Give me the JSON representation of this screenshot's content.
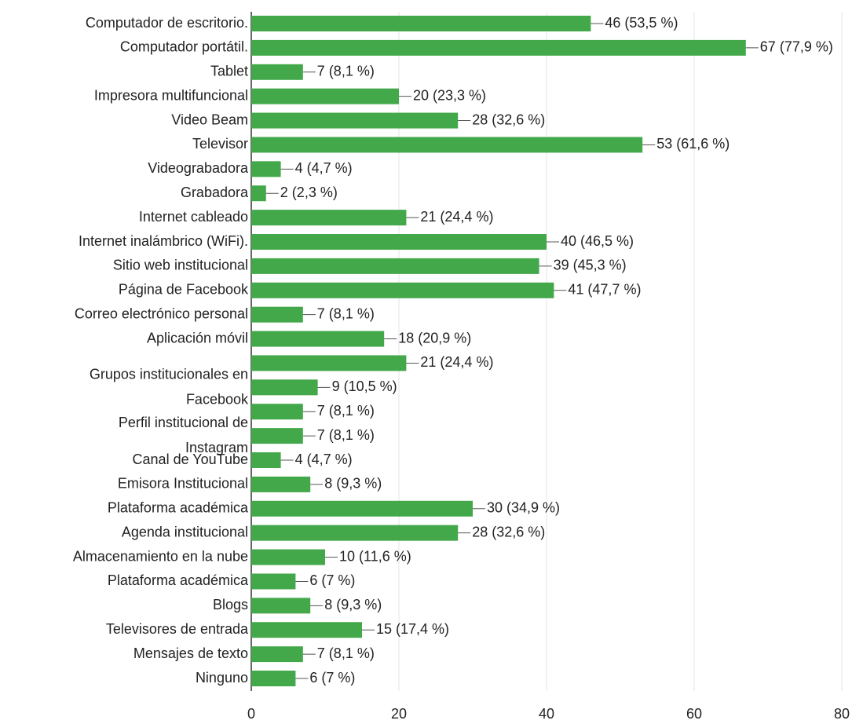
{
  "chart_data": {
    "type": "barh",
    "categories": [
      "Computador de escritorio.",
      "Computador portátil.",
      "Tablet",
      "Impresora multifuncional",
      "Video Beam",
      "Televisor",
      "Videograbadora",
      "Grabadora",
      "Internet cableado",
      "Internet inalámbrico (WiFi).",
      "Sitio web institucional",
      "Página de Facebook",
      "Correo electrónico personal",
      "Aplicación móvil",
      null,
      "Grupos institucionales en Facebook",
      null,
      "Perfil institucional de Instagram",
      "Canal de YouTube",
      "Emisora Institucional",
      "Plataforma académica",
      "Agenda institucional",
      "Almacenamiento en la nube",
      "Plataforma académica",
      "Blogs",
      "Televisores de entrada",
      "Mensajes de texto",
      "Ninguno"
    ],
    "values": [
      46,
      67,
      7,
      20,
      28,
      53,
      4,
      2,
      21,
      40,
      39,
      41,
      7,
      18,
      21,
      9,
      7,
      7,
      4,
      8,
      30,
      28,
      10,
      6,
      8,
      15,
      7,
      6
    ],
    "value_labels": [
      "46 (53,5 %)",
      "67 (77,9 %)",
      "7 (8,1 %)",
      "20 (23,3 %)",
      "28 (32,6 %)",
      "53 (61,6 %)",
      "4 (4,7 %)",
      "2 (2,3 %)",
      "21 (24,4 %)",
      "40 (46,5 %)",
      "39 (45,3 %)",
      "41 (47,7 %)",
      "7 (8,1 %)",
      "18 (20,9 %)",
      "21 (24,4 %)",
      "9 (10,5 %)",
      "7 (8,1 %)",
      "7 (8,1 %)",
      "4 (4,7 %)",
      "8 (9,3 %)",
      "30 (34,9 %)",
      "28 (32,6 %)",
      "10 (11,6 %)",
      "6 (7 %)",
      "8 (9,3 %)",
      "15 (17,4 %)",
      "7 (8,1 %)",
      "6 (7 %)"
    ],
    "color": "#43a84a",
    "xlim": [
      0,
      80
    ],
    "xticks": [
      0,
      20,
      40,
      60,
      80
    ],
    "grid": true
  }
}
